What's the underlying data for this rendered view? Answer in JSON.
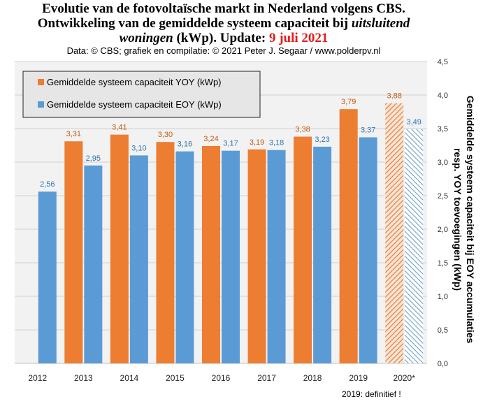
{
  "title": {
    "line1": "Evolutie van de fotovoltaïsche markt in Nederland volgens CBS.",
    "line2_a": "Ontwikkeling van de gemiddelde systeem capaciteit bij ",
    "line2_b": "uitsluitend",
    "line3_a": "woningen",
    "line3_b": " (kWp). Update: ",
    "line3_date": "9 juli 2021"
  },
  "subtitle": "Data: © CBS; grafiek en compilatie: © 2021 Peter J. Segaar / www.polderpv.nl",
  "footnote": "2019: definitief !",
  "chart_data": {
    "type": "bar",
    "categories": [
      "2012",
      "2013",
      "2014",
      "2015",
      "2016",
      "2017",
      "2018",
      "2019",
      "2020*"
    ],
    "series": [
      {
        "name": "Gemiddelde systeem capaciteit YOY (kWp)",
        "color": "#ed7d31",
        "values": [
          null,
          3.31,
          3.41,
          3.3,
          3.24,
          3.19,
          3.38,
          3.79,
          3.88
        ],
        "labels": [
          "",
          "3,31",
          "3,41",
          "3,30",
          "3,24",
          "3,19",
          "3,38",
          "3,79",
          "3,88"
        ]
      },
      {
        "name": "Gemiddelde systeem capaciteit EOY (kWp)",
        "color": "#5b9bd5",
        "values": [
          2.56,
          2.95,
          3.1,
          3.16,
          3.17,
          3.18,
          3.23,
          3.37,
          3.49
        ],
        "labels": [
          "2,56",
          "2,95",
          "3,10",
          "3,16",
          "3,17",
          "3,18",
          "3,23",
          "3,37",
          "3,49"
        ]
      }
    ],
    "provisional_category": "2020*",
    "ylim": [
      0,
      4.5
    ],
    "yticks": [
      0,
      0.5,
      1.0,
      1.5,
      2.0,
      2.5,
      3.0,
      3.5,
      4.0,
      4.5
    ],
    "ytick_labels": [
      "0,0",
      "0,5",
      "1,0",
      "1,5",
      "2,0",
      "2,5",
      "3,0",
      "3,5",
      "4,0",
      "4,5"
    ],
    "ylabel_line1": "Gemiddelde systeem capaciteit bij EOY accumulaties",
    "ylabel_line2": "resp. YOY toevoegingen (kWp)",
    "yaxis_side": "right",
    "grid": true,
    "legend_placement": "top-left",
    "plot_background": "#f2f2f2"
  }
}
